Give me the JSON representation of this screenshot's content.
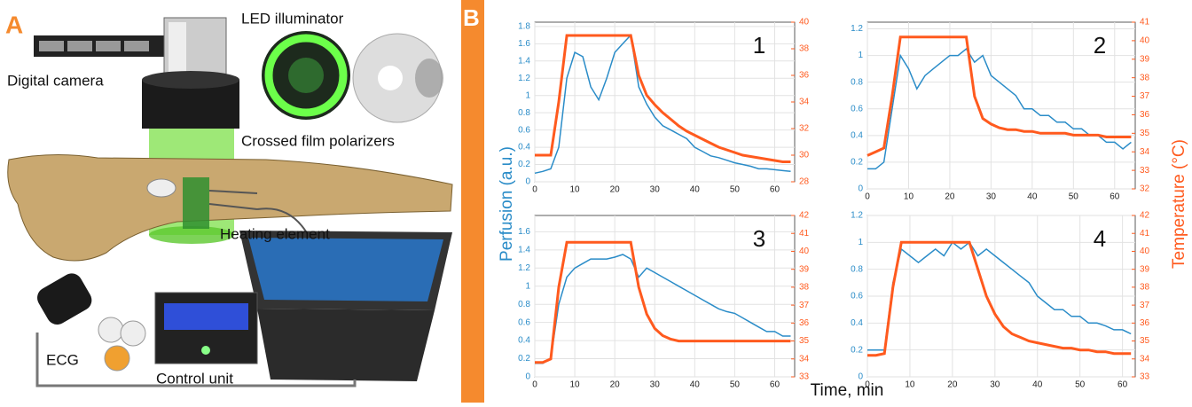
{
  "panel_a": {
    "label": "A",
    "led": "LED illuminator",
    "camera": "Digital camera",
    "polarizers": "Crossed film polarizers",
    "heater": "Heating element",
    "ecg": "ECG",
    "control": "Control unit"
  },
  "panel_b": {
    "label": "B",
    "y_label": "Perfusion (a.u.)",
    "y2_label": "Temperature (°C)",
    "x_label": "Time, min"
  },
  "chart_data": [
    {
      "type": "line",
      "title": "1",
      "xlim": [
        0,
        65
      ],
      "xticks": [
        0,
        10,
        20,
        30,
        40,
        50,
        60
      ],
      "ylim": [
        0,
        1.85
      ],
      "yticks": [
        0,
        0.2,
        0.4,
        0.6,
        0.8,
        1,
        1.2,
        1.4,
        1.6,
        1.8
      ],
      "y2lim": [
        28,
        40
      ],
      "y2ticks": [
        28,
        30,
        32,
        34,
        36,
        38,
        40
      ],
      "grid": true,
      "x": [
        0,
        2,
        4,
        6,
        8,
        10,
        12,
        14,
        16,
        18,
        20,
        22,
        24,
        26,
        28,
        30,
        32,
        34,
        36,
        38,
        40,
        42,
        44,
        46,
        48,
        50,
        52,
        54,
        56,
        58,
        60,
        62,
        64
      ],
      "series": [
        {
          "color": "#2a8cc8",
          "values": [
            0.1,
            0.12,
            0.15,
            0.4,
            1.2,
            1.5,
            1.45,
            1.1,
            0.95,
            1.2,
            1.5,
            1.6,
            1.7,
            1.1,
            0.9,
            0.75,
            0.65,
            0.6,
            0.55,
            0.5,
            0.4,
            0.35,
            0.3,
            0.28,
            0.25,
            0.22,
            0.2,
            0.18,
            0.15,
            0.15,
            0.14,
            0.13,
            0.12
          ]
        },
        {
          "color": "#ff5a1e",
          "axis": "y2",
          "values": [
            30,
            30,
            30,
            34,
            39,
            39,
            39,
            39,
            39,
            39,
            39,
            39,
            39,
            36,
            34.5,
            33.8,
            33.2,
            32.7,
            32.2,
            31.8,
            31.5,
            31.2,
            30.9,
            30.6,
            30.4,
            30.2,
            30,
            29.9,
            29.8,
            29.7,
            29.6,
            29.5,
            29.5
          ]
        }
      ]
    },
    {
      "type": "line",
      "title": "2",
      "xlim": [
        0,
        65
      ],
      "xticks": [
        0,
        10,
        20,
        30,
        40,
        50,
        60
      ],
      "ylim": [
        0,
        1.25
      ],
      "yticks": [
        0,
        0.2,
        0.4,
        0.6,
        0.8,
        1,
        1.2
      ],
      "y2lim": [
        32,
        41
      ],
      "y2ticks": [
        32,
        33,
        34,
        35,
        36,
        37,
        38,
        39,
        40,
        41
      ],
      "grid": true,
      "x": [
        0,
        2,
        4,
        6,
        8,
        10,
        12,
        14,
        16,
        18,
        20,
        22,
        24,
        26,
        28,
        30,
        32,
        34,
        36,
        38,
        40,
        42,
        44,
        46,
        48,
        50,
        52,
        54,
        56,
        58,
        60,
        62,
        64
      ],
      "series": [
        {
          "color": "#2a8cc8",
          "values": [
            0.15,
            0.15,
            0.2,
            0.6,
            1,
            0.9,
            0.75,
            0.85,
            0.9,
            0.95,
            1,
            1,
            1.05,
            0.95,
            1,
            0.85,
            0.8,
            0.75,
            0.7,
            0.6,
            0.6,
            0.55,
            0.55,
            0.5,
            0.5,
            0.45,
            0.45,
            0.4,
            0.4,
            0.35,
            0.35,
            0.3,
            0.35
          ]
        },
        {
          "color": "#ff5a1e",
          "axis": "y2",
          "values": [
            33.8,
            34,
            34.2,
            37,
            40.2,
            40.2,
            40.2,
            40.2,
            40.2,
            40.2,
            40.2,
            40.2,
            40.2,
            37,
            35.8,
            35.5,
            35.3,
            35.2,
            35.2,
            35.1,
            35.1,
            35,
            35,
            35,
            35,
            34.9,
            34.9,
            34.9,
            34.9,
            34.8,
            34.8,
            34.8,
            34.8
          ]
        }
      ]
    },
    {
      "type": "line",
      "title": "3",
      "xlim": [
        0,
        65
      ],
      "xticks": [
        0,
        10,
        20,
        30,
        40,
        50,
        60
      ],
      "ylim": [
        0,
        1.78
      ],
      "yticks": [
        0,
        0.2,
        0.4,
        0.6,
        0.8,
        1,
        1.2,
        1.4,
        1.6
      ],
      "y2lim": [
        33,
        42
      ],
      "y2ticks": [
        33,
        34,
        35,
        36,
        37,
        38,
        39,
        40,
        41,
        42
      ],
      "grid": true,
      "x": [
        0,
        2,
        4,
        6,
        8,
        10,
        12,
        14,
        16,
        18,
        20,
        22,
        24,
        26,
        28,
        30,
        32,
        34,
        36,
        38,
        40,
        42,
        44,
        46,
        48,
        50,
        52,
        54,
        56,
        58,
        60,
        62,
        64
      ],
      "series": [
        {
          "color": "#2a8cc8",
          "values": [
            0.15,
            0.15,
            0.2,
            0.8,
            1.1,
            1.2,
            1.25,
            1.3,
            1.3,
            1.3,
            1.32,
            1.35,
            1.3,
            1.1,
            1.2,
            1.15,
            1.1,
            1.05,
            1,
            0.95,
            0.9,
            0.85,
            0.8,
            0.75,
            0.72,
            0.7,
            0.65,
            0.6,
            0.55,
            0.5,
            0.5,
            0.45,
            0.45
          ]
        },
        {
          "color": "#ff5a1e",
          "axis": "y2",
          "values": [
            33.8,
            33.8,
            34,
            38,
            40.5,
            40.5,
            40.5,
            40.5,
            40.5,
            40.5,
            40.5,
            40.5,
            40.5,
            38,
            36.5,
            35.7,
            35.3,
            35.1,
            35,
            35,
            35,
            35,
            35,
            35,
            35,
            35,
            35,
            35,
            35,
            35,
            35,
            35,
            35
          ]
        }
      ]
    },
    {
      "type": "line",
      "title": "4",
      "xlim": [
        0,
        63
      ],
      "xticks": [
        0,
        10,
        20,
        30,
        40,
        50,
        60
      ],
      "ylim": [
        0,
        1.2
      ],
      "yticks": [
        0,
        0.2,
        0.4,
        0.6,
        0.8,
        1,
        1.2
      ],
      "y2lim": [
        33,
        42
      ],
      "y2ticks": [
        33,
        34,
        35,
        36,
        37,
        38,
        39,
        40,
        41,
        42
      ],
      "grid": true,
      "x": [
        0,
        2,
        4,
        6,
        8,
        10,
        12,
        14,
        16,
        18,
        20,
        22,
        24,
        26,
        28,
        30,
        32,
        34,
        36,
        38,
        40,
        42,
        44,
        46,
        48,
        50,
        52,
        54,
        56,
        58,
        60,
        62
      ],
      "series": [
        {
          "color": "#2a8cc8",
          "values": [
            0.2,
            0.2,
            0.2,
            0.7,
            0.95,
            0.9,
            0.85,
            0.9,
            0.95,
            0.9,
            1,
            0.95,
            1,
            0.9,
            0.95,
            0.9,
            0.85,
            0.8,
            0.75,
            0.7,
            0.6,
            0.55,
            0.5,
            0.5,
            0.45,
            0.45,
            0.4,
            0.4,
            0.38,
            0.35,
            0.35,
            0.32
          ]
        },
        {
          "color": "#ff5a1e",
          "axis": "y2",
          "values": [
            34.2,
            34.2,
            34.3,
            38,
            40.5,
            40.5,
            40.5,
            40.5,
            40.5,
            40.5,
            40.5,
            40.5,
            40.5,
            39,
            37.5,
            36.5,
            35.8,
            35.4,
            35.2,
            35,
            34.9,
            34.8,
            34.7,
            34.6,
            34.6,
            34.5,
            34.5,
            34.4,
            34.4,
            34.3,
            34.3,
            34.3
          ]
        }
      ]
    }
  ]
}
